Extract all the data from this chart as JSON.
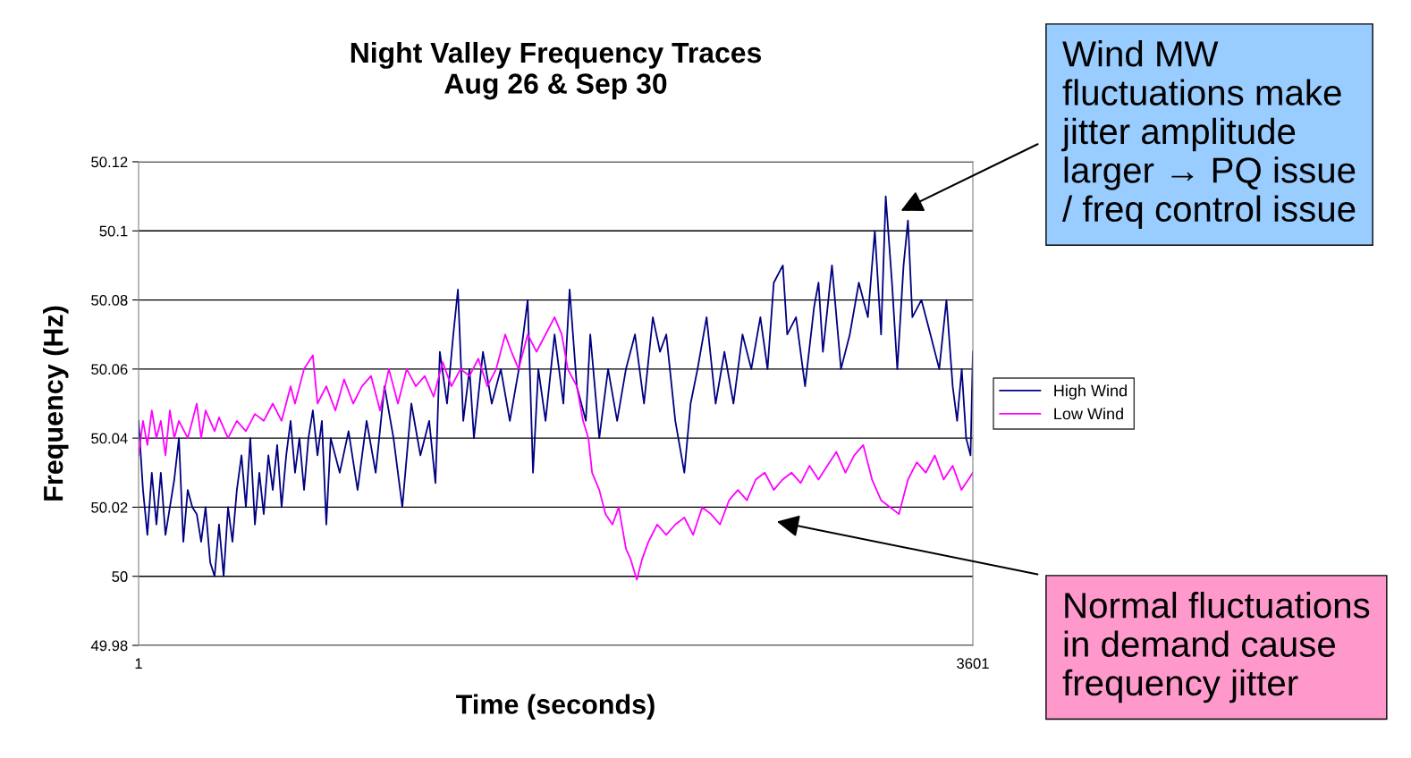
{
  "chart_data": {
    "type": "line",
    "title": "Night Valley Frequency Traces\nAug 26 & Sep 30",
    "xlabel": "Time (seconds)",
    "ylabel": "Frequency (Hz)",
    "xlim": [
      1,
      3601
    ],
    "xticks": [
      1,
      3601
    ],
    "ylim": [
      49.98,
      50.12
    ],
    "yticks": [
      49.98,
      50,
      50.02,
      50.04,
      50.06,
      50.08,
      50.1,
      50.12
    ],
    "grid": "y",
    "legend": "right",
    "marker": "none",
    "line_style": "solid",
    "series": [
      {
        "name": "High Wind",
        "color": "#000080",
        "x": [
          1,
          20,
          39,
          58,
          78,
          97,
          117,
          136,
          155,
          175,
          194,
          213,
          233,
          252,
          271,
          290,
          310,
          329,
          348,
          368,
          387,
          406,
          425,
          445,
          464,
          483,
          503,
          522,
          541,
          561,
          580,
          599,
          618,
          638,
          657,
          676,
          695,
          715,
          734,
          753,
          773,
          792,
          811,
          830,
          869,
          907,
          946,
          985,
          1024,
          1062,
          1101,
          1139,
          1178,
          1217,
          1255,
          1282,
          1301,
          1332,
          1359,
          1379,
          1402,
          1429,
          1448,
          1487,
          1525,
          1564,
          1603,
          1642,
          1680,
          1703,
          1726,
          1757,
          1796,
          1834,
          1861,
          1892,
          1931,
          1950,
          1989,
          2027,
          2066,
          2104,
          2143,
          2182,
          2220,
          2251,
          2278,
          2317,
          2356,
          2383,
          2413,
          2452,
          2491,
          2529,
          2568,
          2607,
          2645,
          2684,
          2715,
          2742,
          2781,
          2800,
          2838,
          2877,
          2916,
          2935,
          2954,
          2993,
          3032,
          3070,
          3109,
          3148,
          3178,
          3205,
          3225,
          3252,
          3275,
          3302,
          3321,
          3340,
          3379,
          3418,
          3456,
          3487,
          3514,
          3533,
          3553,
          3572,
          3591,
          3601
        ],
        "values": [
          50.045,
          50.025,
          50.012,
          50.03,
          50.015,
          50.03,
          50.012,
          50.02,
          50.028,
          50.04,
          50.01,
          50.025,
          50.02,
          50.018,
          50.01,
          50.02,
          50.004,
          50.0,
          50.015,
          50.0,
          50.02,
          50.01,
          50.025,
          50.035,
          50.02,
          50.04,
          50.015,
          50.03,
          50.018,
          50.035,
          50.025,
          50.038,
          50.02,
          50.035,
          50.045,
          50.03,
          50.04,
          50.025,
          50.04,
          50.048,
          50.035,
          50.045,
          50.015,
          50.04,
          50.03,
          50.042,
          50.025,
          50.045,
          50.03,
          50.055,
          50.04,
          50.02,
          50.05,
          50.035,
          50.045,
          50.027,
          50.065,
          50.05,
          50.07,
          50.083,
          50.045,
          50.06,
          50.04,
          50.065,
          50.05,
          50.06,
          50.045,
          50.06,
          50.08,
          50.03,
          50.06,
          50.045,
          50.07,
          50.05,
          50.083,
          50.055,
          50.045,
          50.07,
          50.04,
          50.06,
          50.045,
          50.06,
          50.07,
          50.05,
          50.075,
          50.065,
          50.07,
          50.045,
          50.03,
          50.05,
          50.06,
          50.075,
          50.05,
          50.065,
          50.05,
          50.07,
          50.06,
          50.075,
          50.06,
          50.085,
          50.09,
          50.07,
          50.075,
          50.055,
          50.078,
          50.085,
          50.065,
          50.09,
          50.06,
          50.07,
          50.085,
          50.075,
          50.1,
          50.07,
          50.11,
          50.085,
          50.06,
          50.09,
          50.103,
          50.075,
          50.08,
          50.07,
          50.06,
          50.08,
          50.055,
          50.045,
          50.06,
          50.04,
          50.035,
          50.065
        ]
      },
      {
        "name": "Low Wind",
        "color": "#ff00ff",
        "x": [
          1,
          20,
          39,
          58,
          78,
          97,
          117,
          136,
          155,
          175,
          213,
          233,
          252,
          271,
          290,
          329,
          348,
          387,
          425,
          464,
          503,
          541,
          580,
          618,
          657,
          676,
          715,
          753,
          773,
          811,
          850,
          888,
          927,
          965,
          1004,
          1043,
          1081,
          1120,
          1158,
          1197,
          1236,
          1274,
          1313,
          1351,
          1390,
          1429,
          1467,
          1506,
          1544,
          1583,
          1610,
          1641,
          1680,
          1718,
          1757,
          1796,
          1827,
          1853,
          1892,
          1919,
          1942,
          1958,
          1989,
          2016,
          2046,
          2073,
          2104,
          2124,
          2151,
          2174,
          2201,
          2239,
          2278,
          2317,
          2356,
          2394,
          2433,
          2471,
          2510,
          2549,
          2587,
          2626,
          2664,
          2703,
          2742,
          2780,
          2819,
          2858,
          2896,
          2935,
          2973,
          3012,
          3051,
          3089,
          3128,
          3166,
          3205,
          3244,
          3282,
          3321,
          3359,
          3398,
          3437,
          3475,
          3514,
          3552,
          3601
        ],
        "values": [
          50.035,
          50.045,
          50.038,
          50.048,
          50.04,
          50.045,
          50.035,
          50.048,
          50.04,
          50.045,
          50.04,
          50.045,
          50.05,
          50.04,
          50.048,
          50.042,
          50.046,
          50.04,
          50.045,
          50.042,
          50.047,
          50.045,
          50.05,
          50.045,
          50.055,
          50.05,
          50.06,
          50.064,
          50.05,
          50.055,
          50.048,
          50.057,
          50.05,
          50.055,
          50.058,
          50.048,
          50.06,
          50.05,
          50.06,
          50.055,
          50.058,
          50.052,
          50.062,
          50.055,
          50.06,
          50.058,
          50.063,
          50.055,
          50.06,
          50.07,
          50.065,
          50.06,
          50.07,
          50.065,
          50.07,
          50.075,
          50.07,
          50.06,
          50.055,
          50.045,
          50.04,
          50.03,
          50.025,
          50.018,
          50.015,
          50.02,
          50.008,
          50.005,
          49.999,
          50.005,
          50.01,
          50.015,
          50.012,
          50.015,
          50.017,
          50.012,
          50.02,
          50.018,
          50.015,
          50.022,
          50.025,
          50.022,
          50.028,
          50.03,
          50.025,
          50.028,
          50.03,
          50.027,
          50.032,
          50.028,
          50.032,
          50.036,
          50.03,
          50.035,
          50.038,
          50.028,
          50.022,
          50.02,
          50.018,
          50.028,
          50.033,
          50.03,
          50.035,
          50.028,
          50.032,
          50.025,
          50.03
        ]
      }
    ],
    "annotations": [
      "Wind MW\nfluctuations make\njitter amplitude\nlarger → PQ issue\n/ freq control issue",
      "Normal fluctuations\nin demand cause\nfrequency jitter"
    ]
  }
}
